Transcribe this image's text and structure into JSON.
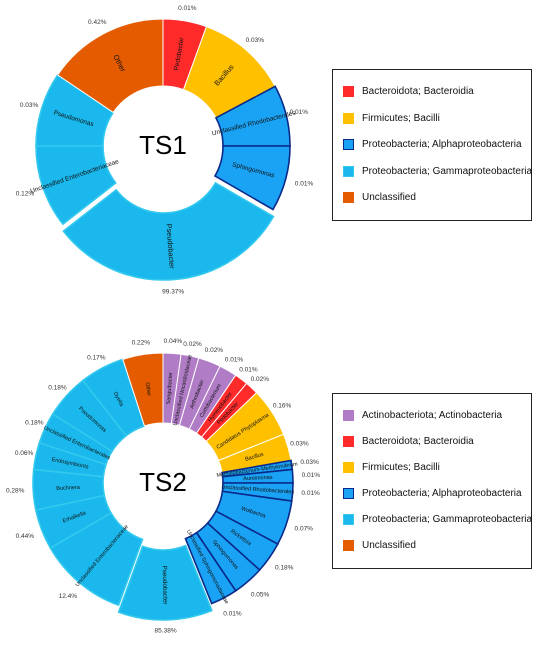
{
  "colors": {
    "actino": "#b07cc6",
    "bacteroidota": "#ff2a2a",
    "firmicutes": "#ffc000",
    "alpha": "#1aa3f5",
    "gamma": "#1ab8ec",
    "unclassified": "#e55c00",
    "alpha_stroke": "#0a2a8a",
    "gamma_stroke": "#33c8ee"
  },
  "chart_data": [
    {
      "type": "pie",
      "title": "TS1",
      "slices": [
        {
          "label": "Pedobacter",
          "value_label": "0.01%",
          "group": "bacteroidota"
        },
        {
          "label": "Bacillus",
          "value_label": "0.03%",
          "group": "firmicutes"
        },
        {
          "label": "Unclassified Rhodobacterales",
          "value_label": "0.01%",
          "group": "alpha"
        },
        {
          "label": "Sphingomonas",
          "value_label": "0.01%",
          "group": "alpha"
        },
        {
          "label": "Pseudobacter",
          "value_label": "99.37%",
          "group": "gamma"
        },
        {
          "label": "Unclassified Enterobacteriaceae",
          "value_label": "0.12%",
          "group": "gamma"
        },
        {
          "label": "Pseudomonas",
          "value_label": "0.03%",
          "group": "gamma"
        },
        {
          "label": "Other",
          "value_label": "0.42%",
          "group": "unclassified"
        }
      ],
      "legend": [
        {
          "label": "Bacteroidota; Bacteroidia",
          "group": "bacteroidota"
        },
        {
          "label": "Firmicutes; Bacilli",
          "group": "firmicutes"
        },
        {
          "label": "Proteobacteria; Alphaproteobacteria",
          "group": "alpha"
        },
        {
          "label": "Proteobacteria; Gammaproteobacteria",
          "group": "gamma"
        },
        {
          "label": "Unclassified",
          "group": "unclassified"
        }
      ]
    },
    {
      "type": "pie",
      "title": "TS2",
      "slices": [
        {
          "label": "Sanguibacter",
          "value_label": "0.04%",
          "group": "actino"
        },
        {
          "label": "Unclassified Nocardioidaceae",
          "value_label": "0.02%",
          "group": "actino"
        },
        {
          "label": "Arthrobacter",
          "value_label": "0.02%",
          "group": "actino"
        },
        {
          "label": "Curtobacterium",
          "value_label": "0.01%",
          "group": "actino"
        },
        {
          "label": "Hymenobacter",
          "value_label": "0.01%",
          "group": "bacteroidota"
        },
        {
          "label": "Pedobacter",
          "value_label": "0.02%",
          "group": "bacteroidota"
        },
        {
          "label": "Candidatus Phytoplasma",
          "value_label": "0.16%",
          "group": "firmicutes"
        },
        {
          "label": "Bacillus",
          "value_label": "0.03%",
          "group": "firmicutes"
        },
        {
          "label": "Methylobacterium-Methylorubrum",
          "value_label": "0.03%",
          "group": "alpha"
        },
        {
          "label": "Aureimonas",
          "value_label": "0.01%",
          "group": "alpha"
        },
        {
          "label": "Unclassified Rhodobacterales",
          "value_label": "0.01%",
          "group": "alpha"
        },
        {
          "label": "Wolbachia",
          "value_label": "0.07%",
          "group": "alpha"
        },
        {
          "label": "Rickettsia",
          "value_label": "0.18%",
          "group": "alpha"
        },
        {
          "label": "Sphingomonas",
          "value_label": "0.05%",
          "group": "alpha"
        },
        {
          "label": "Unclassified Sphingomonadaceae",
          "value_label": "0.01%",
          "group": "alpha"
        },
        {
          "label": "Pseudobacter",
          "value_label": "85.38%",
          "group": "gamma"
        },
        {
          "label": "Unclassified Enterobacteriaceae",
          "value_label": "12.4%",
          "group": "gamma"
        },
        {
          "label": "Erhalkella",
          "value_label": "0.44%",
          "group": "gamma"
        },
        {
          "label": "Buchnera",
          "value_label": "0.28%",
          "group": "gamma"
        },
        {
          "label": "Endosymbionts",
          "value_label": "0.06%",
          "group": "gamma"
        },
        {
          "label": "Unclassified Enterobacterales",
          "value_label": "0.18%",
          "group": "gamma"
        },
        {
          "label": "Pseudomonas",
          "value_label": "0.18%",
          "group": "gamma"
        },
        {
          "label": "Dyella",
          "value_label": "0.17%",
          "group": "gamma"
        },
        {
          "label": "Other",
          "value_label": "0.22%",
          "group": "unclassified"
        }
      ],
      "legend": [
        {
          "label": "Actinobacteriota; Actinobacteria",
          "group": "actino"
        },
        {
          "label": "Bacteroidota; Bacteroidia",
          "group": "bacteroidota"
        },
        {
          "label": "Firmicutes; Bacilli",
          "group": "firmicutes"
        },
        {
          "label": "Proteobacteria; Alphaproteobacteria",
          "group": "alpha"
        },
        {
          "label": "Proteobacteria; Gammaproteobacteria",
          "group": "gamma"
        },
        {
          "label": "Unclassified",
          "group": "unclassified"
        }
      ]
    }
  ]
}
